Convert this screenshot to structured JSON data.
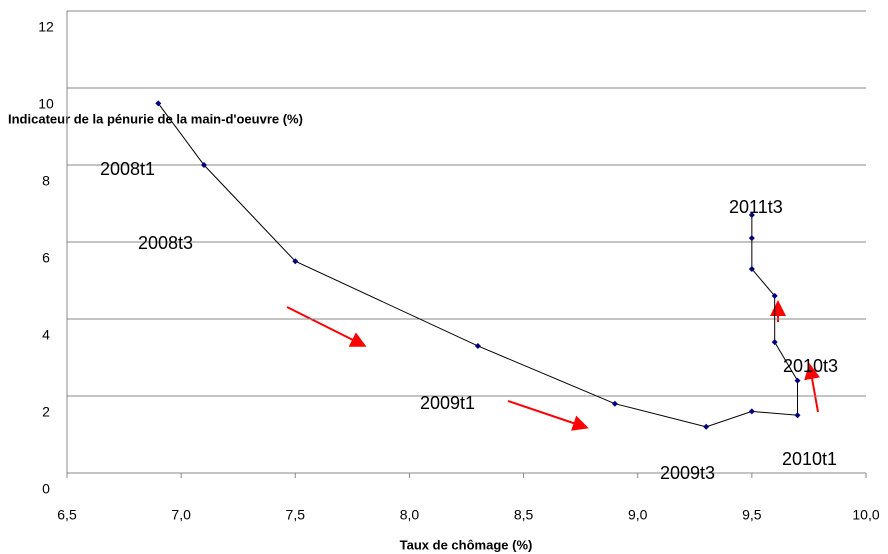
{
  "chart_data": {
    "type": "line",
    "x_label": "Taux de chômage (%)",
    "y_label": "Indicateur de la pénurie de la main-d'oeuvre (%)",
    "x": [
      6.9,
      7.1,
      7.5,
      8.3,
      8.9,
      9.3,
      9.5,
      9.7,
      9.7,
      9.6,
      9.6,
      9.5,
      9.5,
      9.5
    ],
    "series": [
      {
        "color": "#000080",
        "values": [
          9.6,
          8.0,
          5.5,
          3.3,
          1.8,
          1.2,
          1.6,
          1.5,
          2.4,
          3.4,
          4.6,
          5.3,
          6.1,
          6.7
        ]
      }
    ],
    "xlim": [
      6.5,
      10.0
    ],
    "xticks": [
      {
        "value": 6.5,
        "label": "6,5"
      },
      {
        "value": 7.0,
        "label": "7,0"
      },
      {
        "value": 7.5,
        "label": "7,5"
      },
      {
        "value": 8.0,
        "label": "8,0"
      },
      {
        "value": 8.5,
        "label": "8,5"
      },
      {
        "value": 9.0,
        "label": "9,0"
      },
      {
        "value": 9.5,
        "label": "9,5"
      },
      {
        "value": 10.0,
        "label": "10,0"
      }
    ],
    "ylim": [
      0,
      12
    ],
    "yticks": [
      0,
      2,
      4,
      6,
      8,
      10,
      12
    ],
    "grid": true,
    "annotations": [
      "2008t1",
      "2008t3",
      "2009t1",
      "2009t3",
      "2010t1",
      "2010t3",
      "2011t3"
    ]
  }
}
